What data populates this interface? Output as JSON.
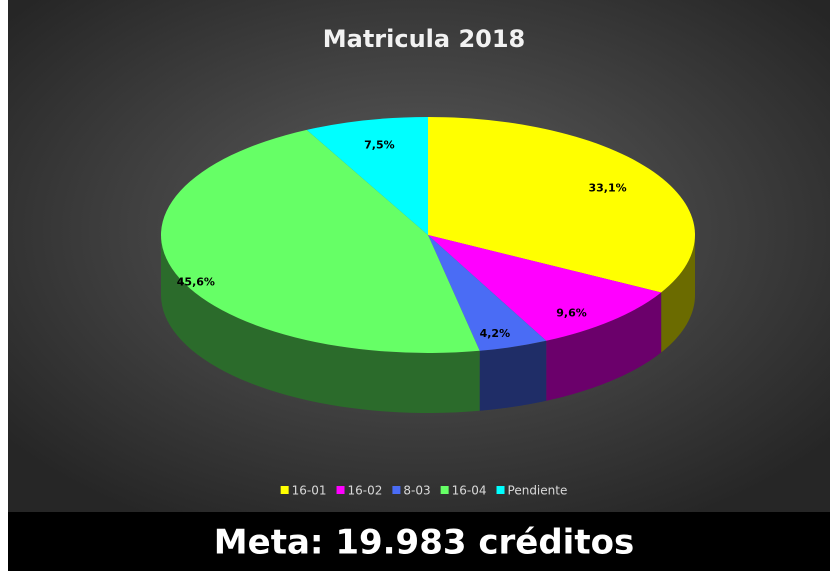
{
  "chart_data": {
    "type": "pie3d",
    "title": "Matricula 2018",
    "categories": [
      "16-01",
      "16-02",
      "8-03",
      "16-04",
      "Pendiente"
    ],
    "values": [
      33.1,
      9.6,
      4.2,
      45.6,
      7.5
    ],
    "value_labels": [
      "33,1%",
      "9,6%",
      "4,2%",
      "45,6%",
      "7,5%"
    ],
    "colors": [
      "#ffff00",
      "#ff00ff",
      "#4a6cf5",
      "#66ff66",
      "#00ffff"
    ],
    "legend": "bottom",
    "annotations": [
      "Meta: 19.983 créditos"
    ]
  }
}
